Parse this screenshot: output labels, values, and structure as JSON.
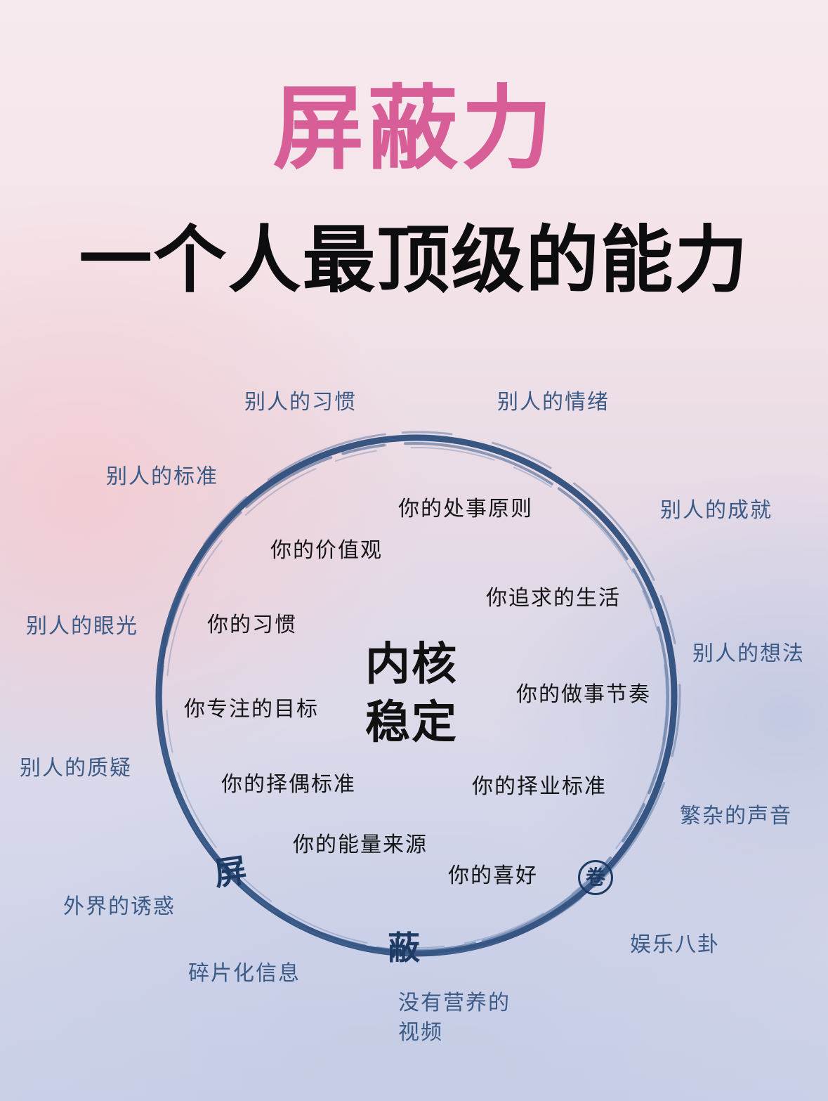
{
  "title": "屏蔽力",
  "subtitle": "一个人最顶级的能力",
  "core": {
    "line1": "内核",
    "line2": "稳定"
  },
  "inner_items": [
    "你的处事原则",
    "你的价值观",
    "你追求的生活",
    "你的习惯",
    "你的做事节奏",
    "你专注的目标",
    "你的择偶标准",
    "你的择业标准",
    "你的能量来源",
    "你的喜好"
  ],
  "outer_items": [
    "别人的习惯",
    "别人的情绪",
    "别人的标准",
    "别人的成就",
    "别人的眼光",
    "别人的想法",
    "别人的质疑",
    "繁杂的声音",
    "外界的诱惑",
    "娱乐八卦",
    "碎片化信息",
    "没有营养的",
    "视频"
  ],
  "ring_seals": [
    "屏",
    "蔽",
    "卷"
  ],
  "colors": {
    "title": "#d85e98",
    "ring": "#2e4e7c",
    "outer_text": "#3b5b86",
    "inner_text": "#151515"
  }
}
